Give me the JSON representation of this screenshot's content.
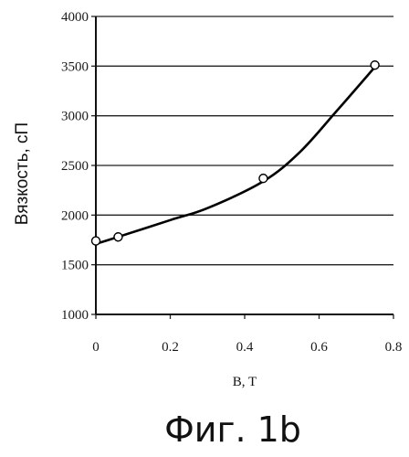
{
  "chart_data": {
    "type": "line",
    "title": "",
    "xlabel": "B, T",
    "ylabel": "Вязкость, сП",
    "xlim": [
      0,
      0.8
    ],
    "ylim": [
      1000,
      4000
    ],
    "x_ticks": [
      0,
      0.2,
      0.4,
      0.6,
      0.8
    ],
    "x_tick_labels": [
      "0",
      "0.2",
      "0.4",
      "0.6",
      "0.8"
    ],
    "y_ticks": [
      1000,
      1500,
      2000,
      2500,
      3000,
      3500,
      4000
    ],
    "y_tick_labels": [
      "1000",
      "1500",
      "2000",
      "2500",
      "3000",
      "3500",
      "4000"
    ],
    "grid": "horizontal",
    "series": [
      {
        "points": [
          {
            "x": 0.0,
            "y": 1740
          },
          {
            "x": 0.06,
            "y": 1780
          },
          {
            "x": 0.45,
            "y": 2370
          },
          {
            "x": 0.75,
            "y": 3510
          }
        ],
        "marker": "open-circle"
      }
    ],
    "fit_curve": [
      {
        "x": 0.0,
        "y": 1710
      },
      {
        "x": 0.06,
        "y": 1780
      },
      {
        "x": 0.2,
        "y": 1950
      },
      {
        "x": 0.3,
        "y": 2070
      },
      {
        "x": 0.45,
        "y": 2340
      },
      {
        "x": 0.55,
        "y": 2640
      },
      {
        "x": 0.65,
        "y": 3060
      },
      {
        "x": 0.75,
        "y": 3490
      }
    ]
  },
  "caption": "Фиг. 1b"
}
